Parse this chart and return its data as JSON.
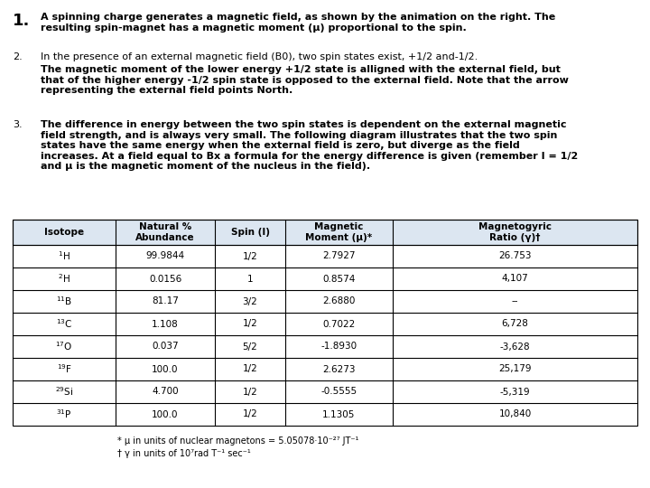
{
  "bg_color": "#ffffff",
  "text_color": "#000000",
  "table_header_bg": "#dce6f1",
  "table_headers": [
    "Isotope",
    "Natural %\nAbundance",
    "Spin (I)",
    "Magnetic\nMoment (μ)*",
    "Magnetogyric\nRatio (γ)†"
  ],
  "table_rows": [
    [
      "$^1$H",
      "99.9844",
      "1/2",
      "2.7927",
      "26.753"
    ],
    [
      "$^2$H",
      "0.0156",
      "1",
      "0.8574",
      "4,107"
    ],
    [
      "$^{11}$B",
      "81.17",
      "3/2",
      "2.6880",
      "--"
    ],
    [
      "$^{13}$C",
      "1.108",
      "1/2",
      "0.7022",
      "6,728"
    ],
    [
      "$^{17}$O",
      "0.037",
      "5/2",
      "-1.8930",
      "-3,628"
    ],
    [
      "$^{19}$F",
      "100.0",
      "1/2",
      "2.6273",
      "25,179"
    ],
    [
      "$^{29}$Si",
      "4.700",
      "1/2",
      "-0.5555",
      "-5,319"
    ],
    [
      "$^{31}$P",
      "100.0",
      "1/2",
      "1.1305",
      "10,840"
    ]
  ],
  "footnote1": "* μ in units of nuclear magnetons = 5.05078·10⁻²⁷ JT⁻¹",
  "footnote2": "† γ in units of 10⁷rad T⁻¹ sec⁻¹",
  "p1_num": "1.",
  "p1_text": "A spinning charge generates a magnetic field, as shown by the animation on the right. The\nresulting spin-magnet has a magnetic moment (μ) proportional to the spin.",
  "p2_num": "2.",
  "p2_text_normal": "In the presence of an external magnetic field (B0), two spin states exist, +1/2 and-1/2.",
  "p2_text_bold": "The magnetic moment of the lower energy +1/2 state is alligned with the external field, but\nthat of the higher energy -1/2 spin state is opposed to the external field. Note that the arrow\nrepresenting the external field points North.",
  "p3_num": "3.",
  "p3_text": "The difference in energy between the two spin states is dependent on the external magnetic\nfield strength, and is always very small. The following diagram illustrates that the two spin\nstates have the same energy when the external field is zero, but diverge as the field\nincreases. At a field equal to Bx a formula for the energy difference is given (remember I = 1/2\nand μ is the magnetic moment of the nucleus in the field).",
  "base_fs": 8.0,
  "p1_num_fs": 13.0
}
